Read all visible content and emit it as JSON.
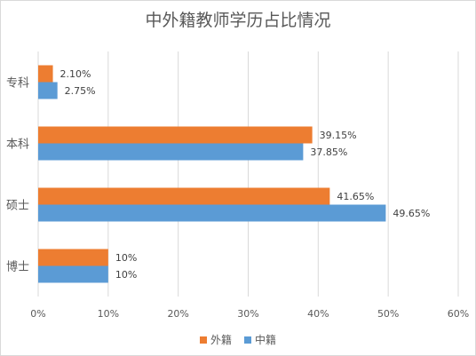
{
  "chart_data": {
    "type": "bar",
    "orientation": "horizontal",
    "title": "中外籍教师学历占比情况",
    "categories": [
      "专科",
      "本科",
      "硕士",
      "博士"
    ],
    "series": [
      {
        "name": "外籍",
        "color": "#ed7d31",
        "values": [
          2.1,
          39.15,
          41.65,
          10
        ],
        "labels": [
          "2.10%",
          "39.15%",
          "41.65%",
          "10%"
        ]
      },
      {
        "name": "中籍",
        "color": "#5b9bd5",
        "values": [
          2.75,
          37.85,
          49.65,
          10
        ],
        "labels": [
          "2.75%",
          "37.85%",
          "49.65%",
          "10%"
        ]
      }
    ],
    "xlim": [
      0,
      60
    ],
    "xticks": [
      "0%",
      "10%",
      "20%",
      "30%",
      "40%",
      "50%",
      "60%"
    ],
    "grid": true,
    "legend_position": "bottom"
  }
}
